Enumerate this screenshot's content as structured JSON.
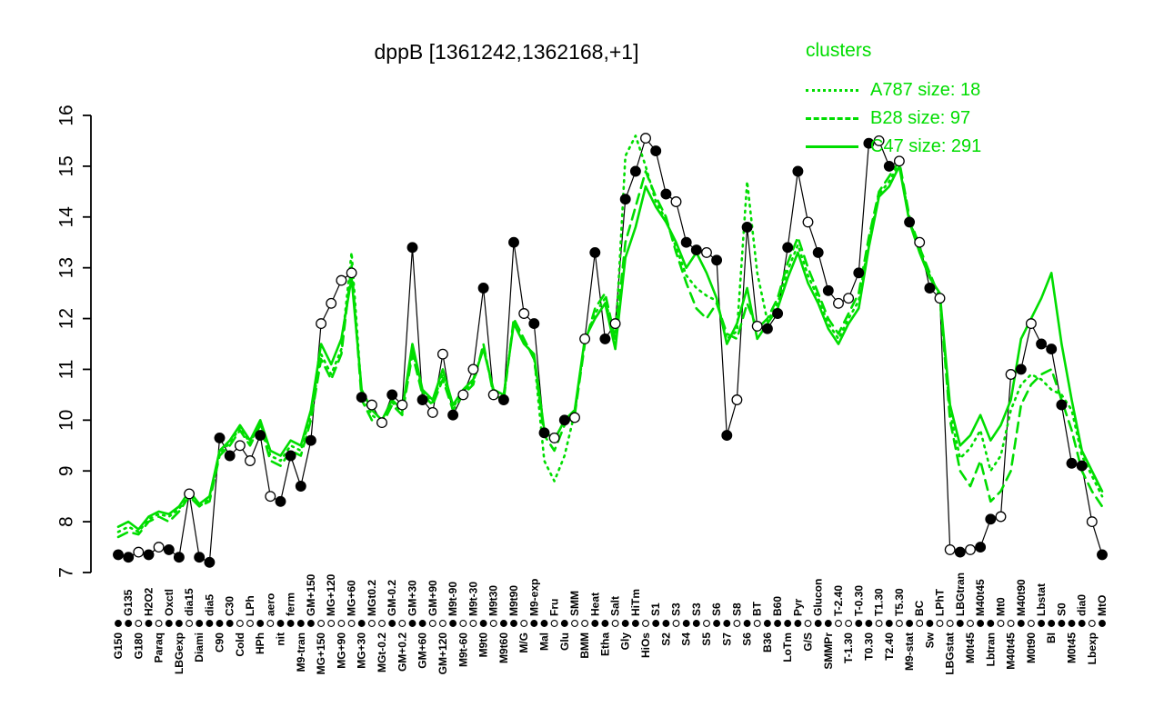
{
  "title": "dppB [1361242,1362168,+1]",
  "accent_color": "#00DD00",
  "legend": {
    "heading": "clusters",
    "entries": [
      {
        "cluster": "A787",
        "size": 18,
        "style": "dotted",
        "label": "A787 size: 18"
      },
      {
        "cluster": "B28",
        "size": 97,
        "style": "dashed",
        "label": "B28 size: 97"
      },
      {
        "cluster": "C47",
        "size": 291,
        "style": "solid",
        "label": "C47 size: 291"
      }
    ]
  },
  "chart_data": {
    "type": "line",
    "title": "dppB [1361242,1362168,+1]",
    "grid": false,
    "legend_position": "top-right",
    "ylim": [
      7,
      16
    ],
    "yticks": [
      7,
      8,
      9,
      10,
      11,
      12,
      13,
      14,
      15,
      16
    ],
    "categories": [
      "G150",
      "G135",
      "G180",
      "H2O2",
      "Paraq",
      "Oxctl",
      "LBGexp",
      "dia15",
      "Diami",
      "dia5",
      "C90",
      "C30",
      "Cold",
      "LPh",
      "HPh",
      "aero",
      "nit",
      "ferm",
      "M9-tran",
      "GM+150",
      "MG+150",
      "MG+120",
      "MG+90",
      "MG+60",
      "MG+30",
      "MGt0.2",
      "MGt-0.2",
      "GM-0.2",
      "GM+0.2",
      "GM+30",
      "GM+60",
      "GM+90",
      "GM+120",
      "M9t-90",
      "M9t-60",
      "M9t-30",
      "M9t0",
      "M9t30",
      "M9t60",
      "M9t90",
      "M/G",
      "M9-exp",
      "Mal",
      "Fru",
      "Glu",
      "SMM",
      "BMM",
      "Heat",
      "Etha",
      "Salt",
      "Gly",
      "HiTm",
      "HiOs",
      "S1",
      "S2",
      "S3",
      "S4",
      "S3",
      "S5",
      "S6",
      "S7",
      "S8",
      "S6",
      "BT",
      "B36",
      "B60",
      "LoTm",
      "Pyr",
      "G/S",
      "Glucon",
      "SMMPr",
      "T-2.40",
      "T-1.30",
      "T-0.30",
      "T0.30",
      "T1.30",
      "T2.40",
      "T5.30",
      "M9-stat",
      "BC",
      "Sw",
      "LPhT",
      "LBGstat",
      "LBGtran",
      "M0t45",
      "M40t45",
      "Lbtran",
      "Mt0",
      "M40t45",
      "M40t90",
      "M0t90",
      "Lbstat",
      "BI",
      "S0",
      "M0t45",
      "dia0",
      "Lbexp",
      "MtO"
    ],
    "series": [
      {
        "name": "dppB",
        "role": "gene-profile",
        "color": "#000000",
        "marker": "circle",
        "values": [
          7.35,
          7.3,
          7.4,
          7.35,
          7.5,
          7.45,
          7.3,
          8.55,
          7.3,
          7.2,
          9.65,
          9.3,
          9.5,
          9.2,
          9.7,
          8.5,
          8.4,
          9.3,
          8.7,
          9.6,
          11.9,
          12.3,
          12.75,
          12.9,
          10.45,
          10.3,
          9.95,
          10.5,
          10.3,
          13.4,
          10.4,
          10.15,
          11.3,
          10.1,
          10.5,
          11.0,
          12.6,
          10.5,
          10.4,
          13.5,
          12.1,
          11.9,
          9.75,
          9.65,
          10.0,
          10.05,
          11.6,
          13.3,
          11.6,
          11.9,
          14.35,
          14.9,
          15.55,
          15.3,
          14.45,
          14.3,
          13.5,
          13.35,
          13.3,
          13.15,
          9.7,
          10.4,
          13.8,
          11.85,
          11.8,
          12.1,
          13.4,
          14.9,
          13.9,
          13.3,
          12.55,
          12.3,
          12.4,
          12.9,
          15.45,
          15.5,
          15.0,
          15.1,
          13.9,
          13.5,
          12.6,
          12.4,
          7.45,
          7.4,
          7.45,
          7.5,
          8.05,
          8.1,
          10.9,
          11.0,
          11.9,
          11.5,
          11.4,
          10.3,
          9.15,
          9.1,
          8.0,
          7.35
        ],
        "marker_filled": [
          1,
          1,
          0,
          1,
          0,
          1,
          1,
          0,
          1,
          1,
          1,
          1,
          0,
          0,
          1,
          0,
          1,
          1,
          1,
          1,
          0,
          0,
          0,
          0,
          1,
          0,
          0,
          1,
          0,
          1,
          1,
          0,
          0,
          1,
          0,
          0,
          1,
          0,
          1,
          1,
          0,
          1,
          1,
          0,
          1,
          0,
          0,
          1,
          1,
          0,
          1,
          1,
          0,
          1,
          1,
          0,
          1,
          1,
          0,
          1,
          1,
          0,
          1,
          0,
          1,
          1,
          1,
          1,
          0,
          1,
          1,
          0,
          0,
          1,
          1,
          0,
          1,
          0,
          1,
          0,
          1,
          0,
          0,
          1,
          0,
          1,
          1,
          0,
          0,
          1,
          0,
          1,
          1,
          1,
          1,
          1,
          0,
          1
        ]
      },
      {
        "name": "A787",
        "role": "cluster-mean",
        "size": 18,
        "color": "#00DD00",
        "linestyle": "dotted",
        "values": [
          7.8,
          7.9,
          7.8,
          8.05,
          8.15,
          8.1,
          8.25,
          8.55,
          8.3,
          8.45,
          9.35,
          9.55,
          9.85,
          9.55,
          9.95,
          9.3,
          9.2,
          9.5,
          9.4,
          10.1,
          11.3,
          10.9,
          11.4,
          13.3,
          10.5,
          10.1,
          9.95,
          10.35,
          10.15,
          11.4,
          10.55,
          10.35,
          10.9,
          10.25,
          10.55,
          10.75,
          11.45,
          10.55,
          10.45,
          11.95,
          11.55,
          11.25,
          9.2,
          8.8,
          9.3,
          10.15,
          11.55,
          12.1,
          12.4,
          11.5,
          15.2,
          15.6,
          15.0,
          14.3,
          13.95,
          13.4,
          12.85,
          12.6,
          12.45,
          12.35,
          11.6,
          11.75,
          14.7,
          12.9,
          11.95,
          12.3,
          12.95,
          13.45,
          12.85,
          12.4,
          11.9,
          11.6,
          12.0,
          12.35,
          13.5,
          14.45,
          14.7,
          15.05,
          13.95,
          13.35,
          12.85,
          12.45,
          10.15,
          9.25,
          9.45,
          9.8,
          9.0,
          9.3,
          10.2,
          10.7,
          10.9,
          10.8,
          10.6,
          10.5,
          10.2,
          9.3,
          8.9,
          8.5
        ]
      },
      {
        "name": "B28",
        "role": "cluster-mean",
        "size": 97,
        "color": "#00DD00",
        "linestyle": "dashed",
        "values": [
          7.7,
          7.8,
          7.75,
          8.0,
          8.1,
          8.0,
          8.2,
          8.5,
          8.3,
          8.4,
          9.3,
          9.5,
          9.8,
          9.5,
          9.9,
          9.2,
          9.1,
          9.4,
          9.3,
          10.0,
          11.2,
          10.8,
          11.3,
          13.05,
          10.4,
          10.0,
          9.9,
          10.3,
          10.1,
          11.3,
          10.5,
          10.3,
          10.8,
          10.2,
          10.5,
          10.7,
          11.5,
          10.5,
          10.4,
          12.0,
          11.6,
          11.2,
          9.7,
          9.4,
          9.9,
          10.1,
          11.5,
          12.2,
          12.5,
          11.6,
          13.5,
          14.2,
          14.9,
          14.4,
          14.0,
          13.3,
          12.7,
          12.2,
          12.0,
          12.3,
          11.7,
          11.6,
          12.3,
          11.8,
          12.0,
          12.4,
          13.1,
          13.6,
          13.0,
          12.5,
          12.0,
          11.7,
          12.1,
          12.5,
          13.6,
          14.5,
          14.8,
          15.1,
          14.0,
          13.4,
          12.9,
          12.4,
          10.0,
          9.0,
          8.7,
          9.2,
          8.4,
          8.6,
          9.0,
          10.3,
          10.7,
          10.9,
          11.0,
          10.4,
          9.8,
          9.0,
          8.6,
          8.3
        ]
      },
      {
        "name": "C47",
        "role": "cluster-mean",
        "size": 291,
        "color": "#00DD00",
        "linestyle": "solid",
        "values": [
          7.9,
          8.0,
          7.85,
          8.1,
          8.2,
          8.15,
          8.3,
          8.6,
          8.35,
          8.5,
          9.4,
          9.6,
          9.9,
          9.6,
          10.0,
          9.4,
          9.3,
          9.6,
          9.5,
          10.2,
          11.5,
          11.1,
          11.6,
          12.8,
          10.6,
          10.2,
          10.0,
          10.4,
          10.2,
          11.5,
          10.6,
          10.4,
          11.0,
          10.3,
          10.6,
          10.8,
          11.4,
          10.6,
          10.5,
          11.9,
          11.5,
          11.3,
          9.8,
          9.6,
          10.0,
          10.2,
          11.6,
          12.0,
          12.3,
          11.4,
          13.2,
          13.8,
          14.6,
          14.2,
          13.9,
          13.5,
          13.0,
          13.3,
          12.9,
          12.4,
          11.5,
          11.9,
          12.6,
          11.6,
          11.9,
          12.2,
          12.8,
          13.3,
          12.7,
          12.3,
          11.8,
          11.5,
          11.9,
          12.2,
          13.4,
          14.4,
          14.6,
          15.0,
          13.9,
          13.3,
          12.8,
          12.5,
          10.3,
          9.5,
          9.7,
          10.1,
          9.6,
          9.9,
          10.4,
          11.6,
          12.0,
          12.4,
          12.9,
          11.5,
          10.4,
          9.4,
          9.0,
          8.6
        ]
      }
    ]
  }
}
